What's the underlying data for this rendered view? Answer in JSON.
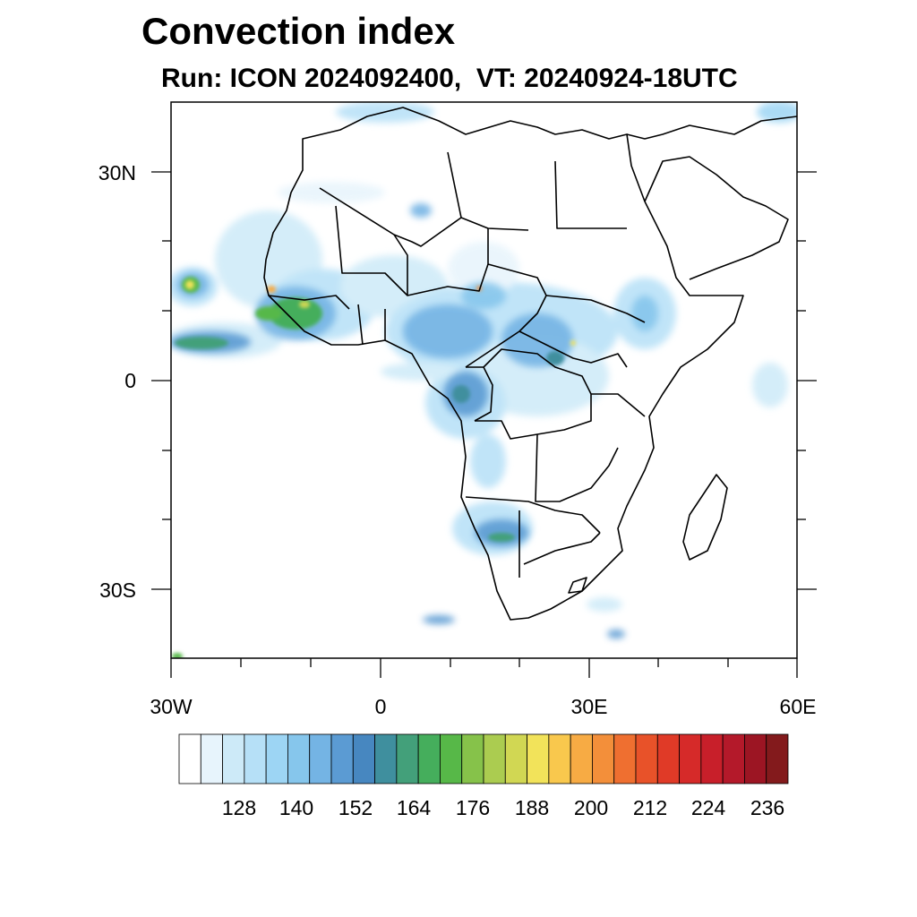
{
  "title": "Convection index",
  "subtitle": "Run: ICON 2024092400,  VT: 20240924-18UTC",
  "latitude_labels": [
    "30N",
    "0",
    "30S"
  ],
  "longitude_labels": [
    "30W",
    "0",
    "30E",
    "60E"
  ],
  "colorbar": {
    "tick_labels": [
      "128",
      "140",
      "152",
      "164",
      "176",
      "188",
      "200",
      "212",
      "224",
      "236"
    ],
    "colors": [
      "#ffffff",
      "#e7f4fc",
      "#cdeaf8",
      "#b6e0f7",
      "#9dd5f4",
      "#86c6ec",
      "#74b4e4",
      "#5b9bd3",
      "#4787c0",
      "#3f8f9e",
      "#43a07a",
      "#45ae5c",
      "#57b848",
      "#86c24a",
      "#abcc50",
      "#d1d753",
      "#f2e35a",
      "#f9c84d",
      "#f7ab44",
      "#f38f3a",
      "#ef6f30",
      "#e85229",
      "#e03a27",
      "#d62a29",
      "#c81f2a",
      "#b4192a",
      "#9c1523",
      "#831a1c"
    ]
  }
}
